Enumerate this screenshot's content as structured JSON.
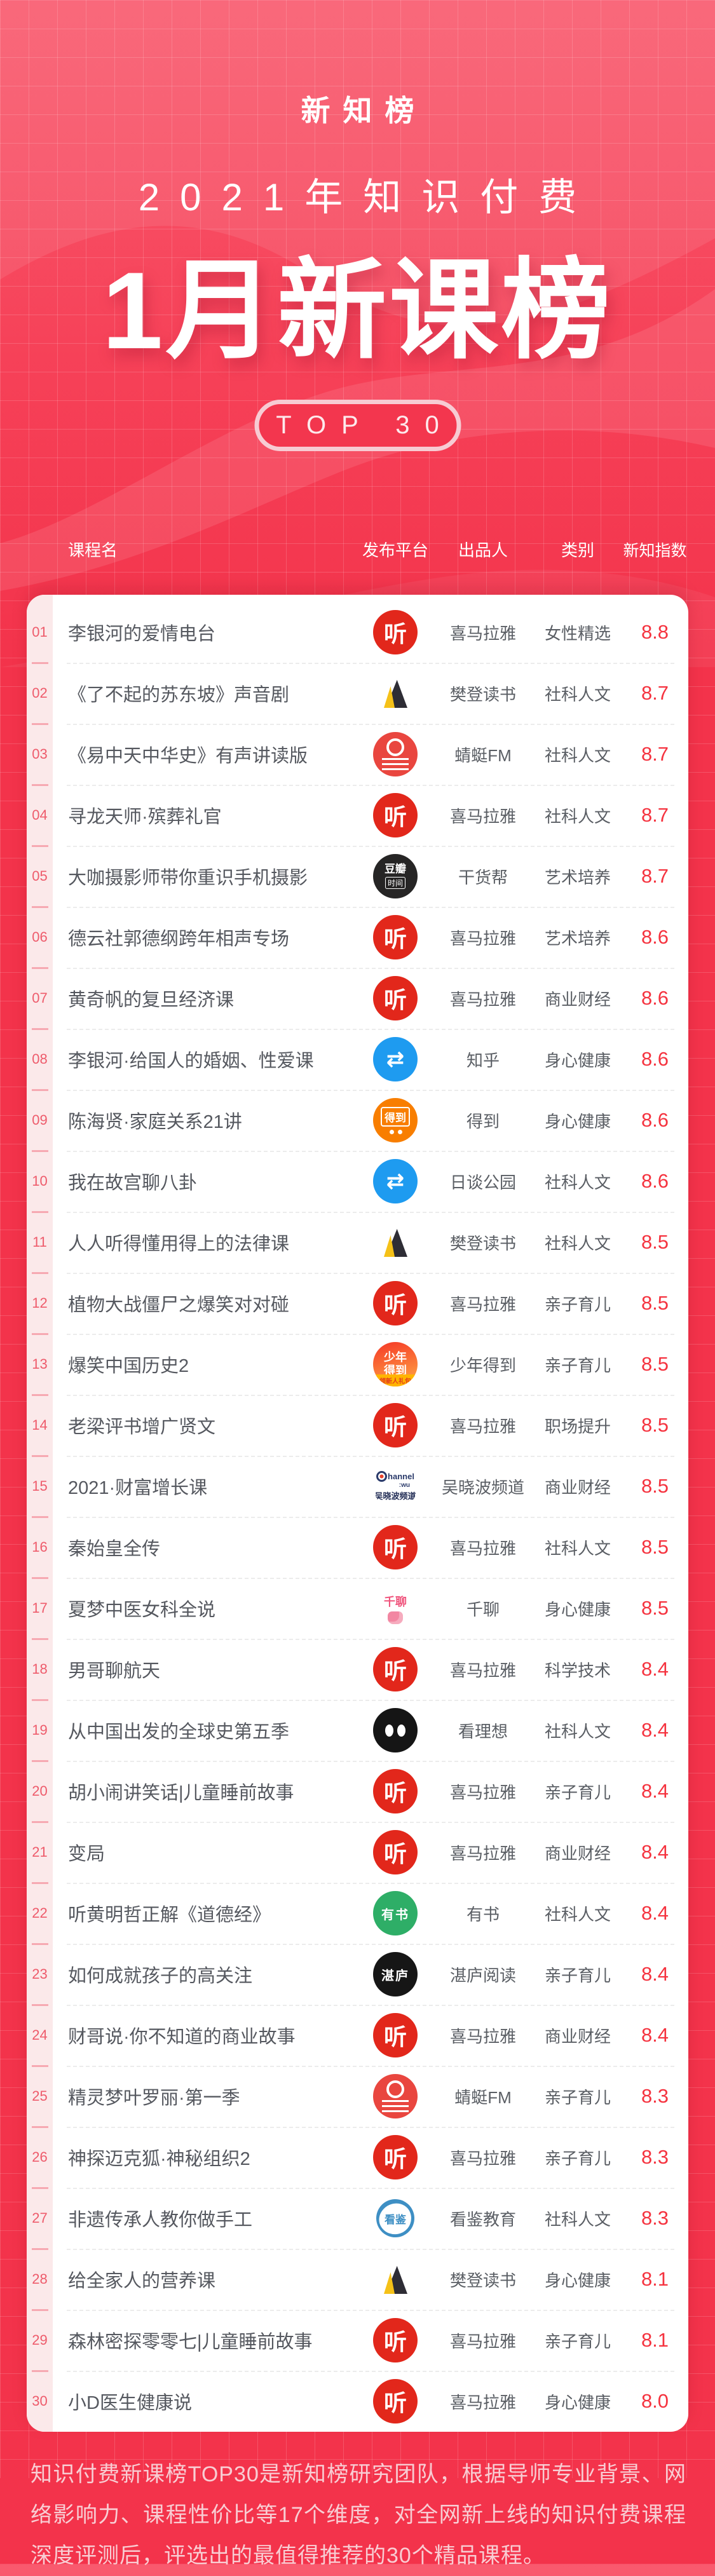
{
  "colors": {
    "background": "#F3334B",
    "background_top": "#F95A6E",
    "card": "#FFFFFF",
    "rank_strip": "#FBE9EA",
    "rank_text": "#EE5B6B",
    "score_text": "#F5333F",
    "row_text": "#55585F",
    "badge_border": "#F7CBD3",
    "footer_text": "#F8CDD3",
    "ximalaya_red": "#E2271B",
    "zhihu_blue": "#1E9BF0",
    "dedao_orange": "#F87E00"
  },
  "header": {
    "logo": "新知榜",
    "title": "2021年知识付费",
    "big_title": "1月新课榜",
    "badge": "TOP 30"
  },
  "table": {
    "columns": [
      "课程名",
      "发布平台",
      "出品人",
      "类别",
      "新知指数"
    ]
  },
  "rows": [
    {
      "rank": "01",
      "title": "李银河的爱情电台",
      "icon": "ximalaya",
      "producer": "喜马拉雅",
      "category": "女性精选",
      "score": "8.8"
    },
    {
      "rank": "02",
      "title": "《了不起的苏东坡》声音剧",
      "icon": "fandeng",
      "producer": "樊登读书",
      "category": "社科人文",
      "score": "8.7"
    },
    {
      "rank": "03",
      "title": "《易中天中华史》有声讲读版",
      "icon": "qingting",
      "producer": "蜻蜓FM",
      "category": "社科人文",
      "score": "8.7"
    },
    {
      "rank": "04",
      "title": "寻龙天师·殡葬礼官",
      "icon": "ximalaya",
      "producer": "喜马拉雅",
      "category": "社科人文",
      "score": "8.7"
    },
    {
      "rank": "05",
      "title": "大咖摄影师带你重识手机摄影",
      "icon": "douban",
      "producer": "干货帮",
      "category": "艺术培养",
      "score": "8.7"
    },
    {
      "rank": "06",
      "title": "德云社郭德纲跨年相声专场",
      "icon": "ximalaya",
      "producer": "喜马拉雅",
      "category": "艺术培养",
      "score": "8.6"
    },
    {
      "rank": "07",
      "title": "黄奇帆的复旦经济课",
      "icon": "ximalaya",
      "producer": "喜马拉雅",
      "category": "商业财经",
      "score": "8.6"
    },
    {
      "rank": "08",
      "title": "李银河·给国人的婚姻、性爱课",
      "icon": "zhihu",
      "producer": "知乎",
      "category": "身心健康",
      "score": "8.6"
    },
    {
      "rank": "09",
      "title": "陈海贤·家庭关系21讲",
      "icon": "dedao",
      "producer": "得到",
      "category": "身心健康",
      "score": "8.6"
    },
    {
      "rank": "10",
      "title": "我在故宫聊八卦",
      "icon": "zhihu",
      "producer": "日谈公园",
      "category": "社科人文",
      "score": "8.6"
    },
    {
      "rank": "11",
      "title": "人人听得懂用得上的法律课",
      "icon": "fandeng",
      "producer": "樊登读书",
      "category": "社科人文",
      "score": "8.5"
    },
    {
      "rank": "12",
      "title": "植物大战僵尸之爆笑对对碰",
      "icon": "ximalaya",
      "producer": "喜马拉雅",
      "category": "亲子育儿",
      "score": "8.5"
    },
    {
      "rank": "13",
      "title": "爆笑中国历史2",
      "icon": "shaonian",
      "producer": "少年得到",
      "category": "亲子育儿",
      "score": "8.5"
    },
    {
      "rank": "14",
      "title": "老梁评书增广贤文",
      "icon": "ximalaya",
      "producer": "喜马拉雅",
      "category": "职场提升",
      "score": "8.5"
    },
    {
      "rank": "15",
      "title": "2021·财富增长课",
      "icon": "wuxiaobo",
      "producer": "吴晓波频道",
      "category": "商业财经",
      "score": "8.5"
    },
    {
      "rank": "16",
      "title": "秦始皇全传",
      "icon": "ximalaya",
      "producer": "喜马拉雅",
      "category": "社科人文",
      "score": "8.5"
    },
    {
      "rank": "17",
      "title": "夏梦中医女科全说",
      "icon": "qianliao",
      "producer": "千聊",
      "category": "身心健康",
      "score": "8.5"
    },
    {
      "rank": "18",
      "title": "男哥聊航天",
      "icon": "ximalaya",
      "producer": "喜马拉雅",
      "category": "科学技术",
      "score": "8.4"
    },
    {
      "rank": "19",
      "title": "从中国出发的全球史第五季",
      "icon": "kanlixiang",
      "producer": "看理想",
      "category": "社科人文",
      "score": "8.4"
    },
    {
      "rank": "20",
      "title": "胡小闹讲笑话|儿童睡前故事",
      "icon": "ximalaya",
      "producer": "喜马拉雅",
      "category": "亲子育儿",
      "score": "8.4"
    },
    {
      "rank": "21",
      "title": "变局",
      "icon": "ximalaya",
      "producer": "喜马拉雅",
      "category": "商业财经",
      "score": "8.4"
    },
    {
      "rank": "22",
      "title": "听黄明哲正解《道德经》",
      "icon": "youshu",
      "producer": "有书",
      "category": "社科人文",
      "score": "8.4"
    },
    {
      "rank": "23",
      "title": "如何成就孩子的高关注",
      "icon": "zhanlu",
      "producer": "湛庐阅读",
      "category": "亲子育儿",
      "score": "8.4"
    },
    {
      "rank": "24",
      "title": "财哥说·你不知道的商业故事",
      "icon": "ximalaya",
      "producer": "喜马拉雅",
      "category": "商业财经",
      "score": "8.4"
    },
    {
      "rank": "25",
      "title": "精灵梦叶罗丽·第一季",
      "icon": "qingting",
      "producer": "蜻蜓FM",
      "category": "亲子育儿",
      "score": "8.3"
    },
    {
      "rank": "26",
      "title": "神探迈克狐·神秘组织2",
      "icon": "ximalaya",
      "producer": "喜马拉雅",
      "category": "亲子育儿",
      "score": "8.3"
    },
    {
      "rank": "27",
      "title": "非遗传承人教你做手工",
      "icon": "kanjian",
      "producer": "看鉴教育",
      "category": "社科人文",
      "score": "8.3"
    },
    {
      "rank": "28",
      "title": "给全家人的营养课",
      "icon": "fandeng",
      "producer": "樊登读书",
      "category": "身心健康",
      "score": "8.1"
    },
    {
      "rank": "29",
      "title": "森林密探零零七|儿童睡前故事",
      "icon": "ximalaya",
      "producer": "喜马拉雅",
      "category": "亲子育儿",
      "score": "8.1"
    },
    {
      "rank": "30",
      "title": "小D医生健康说",
      "icon": "ximalaya",
      "producer": "喜马拉雅",
      "category": "身心健康",
      "score": "8.0"
    }
  ],
  "icons": {
    "ximalaya": {
      "cls": "ic-ximalaya",
      "parts": [
        {
          "c": "xm",
          "v": "听"
        }
      ]
    },
    "fandeng": {
      "cls": "ic-fandeng",
      "parts": []
    },
    "qingting": {
      "cls": "ic-qingting",
      "parts": []
    },
    "douban": {
      "cls": "ic-douban",
      "parts": [
        {
          "c": "db1",
          "v": "豆瓣"
        },
        {
          "c": "db2",
          "v": "时间"
        }
      ]
    },
    "zhihu": {
      "cls": "ic-zhihu",
      "parts": [
        {
          "c": "zh",
          "v": "⇄"
        }
      ]
    },
    "dedao": {
      "cls": "ic-dedao",
      "parts": [
        {
          "c": "dd",
          "v": "得到"
        }
      ]
    },
    "shaonian": {
      "cls": "ic-shaonian",
      "parts": [
        {
          "c": "sn",
          "v": "少年"
        },
        {
          "c": "sn",
          "v": "得到"
        },
        {
          "c": "snband",
          "v": "领新人礼包"
        }
      ]
    },
    "wuxiaobo": {
      "cls": "ic-wuxiaobo",
      "parts": [
        {
          "c": "wxl1",
          "v": "hannel"
        },
        {
          "c": "wxl2",
          "v": ":wu"
        },
        {
          "c": "wxl3",
          "v": "吴晓波频道"
        }
      ]
    },
    "qianliao": {
      "cls": "ic-qianliao",
      "parts": [
        {
          "c": "ql",
          "v": "千聊"
        }
      ]
    },
    "kanlixiang": {
      "cls": "ic-kanlixiang",
      "parts": []
    },
    "youshu": {
      "cls": "ic-youshu",
      "parts": [
        {
          "c": "ys",
          "v": "有书"
        }
      ]
    },
    "zhanlu": {
      "cls": "ic-zhanlu",
      "parts": [
        {
          "c": "zl",
          "v": "湛庐"
        }
      ]
    },
    "kanjian": {
      "cls": "ic-kanjian",
      "parts": [
        {
          "c": "kj",
          "v": "看鉴"
        }
      ]
    }
  },
  "footer": {
    "text": "知识付费新课榜TOP30是新知榜研究团队，根据导师专业背景、网络影响力、课程性价比等17个维度，对全网新上线的知识付费课程深度评测后，评选出的最值得推荐的30个精品课程。"
  }
}
